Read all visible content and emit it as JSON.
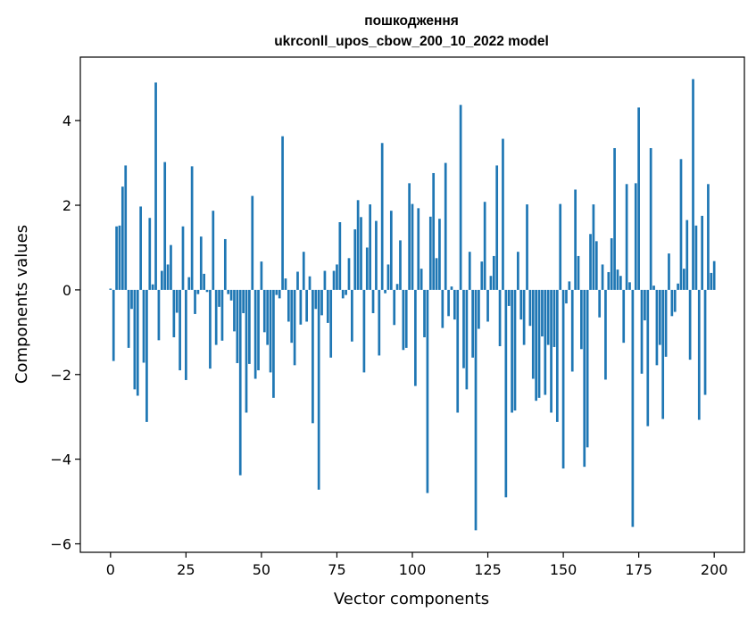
{
  "chart_data": {
    "type": "bar",
    "title": "пошкодження",
    "subtitle": "ukrconll_upos_cbow_200_10_2022 model",
    "xlabel": "Vector components",
    "ylabel": "Components values",
    "xlim": [
      -10,
      210
    ],
    "ylim": [
      -6.2,
      5.5
    ],
    "xticks": [
      0,
      25,
      50,
      75,
      100,
      125,
      150,
      175,
      200
    ],
    "xtick_labels": [
      "0",
      "25",
      "50",
      "75",
      "100",
      "125",
      "150",
      "175",
      "200"
    ],
    "yticks": [
      -6,
      -4,
      -2,
      0,
      2,
      4
    ],
    "ytick_labels": [
      "−6",
      "−4",
      "−2",
      "0",
      "2",
      "4"
    ],
    "grid": false,
    "bar_color": "#1f77b4",
    "values": [
      0.03,
      -1.68,
      1.5,
      1.52,
      2.44,
      2.94,
      -1.37,
      -0.45,
      -2.35,
      -2.5,
      1.97,
      -1.72,
      -3.12,
      1.7,
      0.13,
      4.9,
      -1.19,
      0.45,
      3.02,
      0.6,
      1.06,
      -1.12,
      -0.54,
      -1.9,
      1.5,
      -2.13,
      0.3,
      2.92,
      -0.57,
      -0.1,
      1.26,
      0.38,
      -0.05,
      -1.86,
      1.87,
      -1.3,
      -0.4,
      -1.2,
      1.2,
      -0.1,
      -0.25,
      -0.98,
      -1.73,
      -4.38,
      -0.55,
      -2.9,
      -1.75,
      2.22,
      -2.1,
      -1.9,
      0.67,
      -1.0,
      -1.3,
      -1.95,
      -2.55,
      -0.12,
      -0.2,
      3.63,
      0.27,
      -0.75,
      -1.25,
      -1.78,
      0.43,
      -0.82,
      0.9,
      -0.75,
      0.32,
      -3.15,
      -0.45,
      -4.72,
      -0.6,
      0.45,
      -0.78,
      -1.6,
      0.45,
      0.6,
      1.6,
      -0.2,
      -0.12,
      0.75,
      -1.22,
      1.43,
      2.12,
      1.72,
      -1.95,
      1.0,
      2.02,
      -0.55,
      1.63,
      -1.55,
      3.47,
      -0.08,
      0.6,
      1.87,
      -0.83,
      0.14,
      1.17,
      -1.42,
      -1.37,
      2.52,
      2.03,
      -2.27,
      1.93,
      0.5,
      -1.12,
      -4.8,
      1.73,
      2.76,
      0.75,
      1.68,
      -0.9,
      3.0,
      -0.62,
      0.08,
      -0.7,
      -2.9,
      4.37,
      -1.85,
      -2.35,
      0.9,
      -1.6,
      -5.68,
      -0.92,
      0.67,
      2.08,
      -0.75,
      0.33,
      0.8,
      2.94,
      -1.33,
      3.57,
      -4.9,
      -0.38,
      -2.9,
      -2.85,
      0.9,
      -0.7,
      -1.3,
      2.02,
      -0.85,
      -2.1,
      -2.62,
      -2.55,
      -1.1,
      -2.48,
      -1.3,
      -2.9,
      -1.35,
      -3.12,
      2.03,
      -4.22,
      -0.32,
      0.2,
      -1.93,
      2.37,
      0.8,
      -1.4,
      -4.18,
      -3.72,
      1.32,
      2.02,
      1.15,
      -0.65,
      0.6,
      -2.12,
      0.42,
      1.22,
      3.35,
      0.48,
      0.33,
      -1.25,
      2.5,
      0.18,
      -5.6,
      2.52,
      4.31,
      -1.98,
      -0.72,
      -3.22,
      3.35,
      0.1,
      -1.78,
      -1.3,
      -3.05,
      -1.58,
      0.86,
      -0.62,
      -0.52,
      0.15,
      3.09,
      0.5,
      1.65,
      -1.65,
      4.98,
      1.52,
      -3.07,
      1.75,
      -2.48,
      2.5,
      0.4,
      0.68
    ]
  }
}
